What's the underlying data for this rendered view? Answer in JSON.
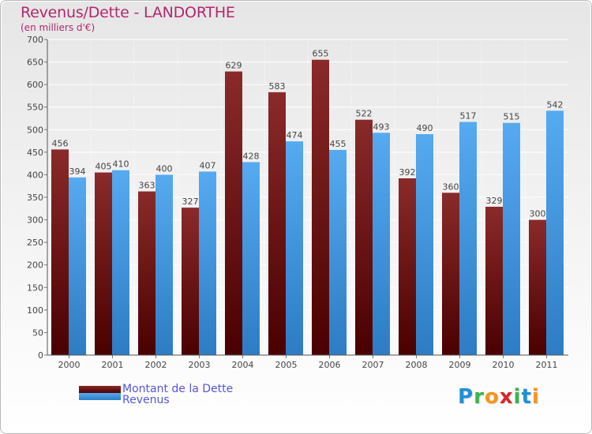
{
  "header": {
    "title": "Revenus/Dette - LANDORTHE",
    "subtitle": "(en milliers d'€)"
  },
  "colors": {
    "dette": "#6b0a0a",
    "revenus": "#3e98e0",
    "title": "#b2286a",
    "legend_text": "#5555dd"
  },
  "chart_data": {
    "type": "bar",
    "title": "Revenus/Dette - LANDORTHE",
    "subtitle": "(en milliers d'€)",
    "categories": [
      "2000",
      "2001",
      "2002",
      "2003",
      "2004",
      "2005",
      "2006",
      "2007",
      "2008",
      "2009",
      "2010",
      "2011"
    ],
    "series": [
      {
        "name": "Montant de la Dette",
        "values": [
          456,
          405,
          363,
          327,
          629,
          583,
          655,
          522,
          392,
          360,
          329,
          300
        ]
      },
      {
        "name": "Revenus",
        "values": [
          394,
          410,
          400,
          407,
          428,
          474,
          455,
          493,
          490,
          517,
          515,
          542
        ]
      }
    ],
    "ylim": [
      0,
      700
    ],
    "yticks": [
      0,
      50,
      100,
      150,
      200,
      250,
      300,
      350,
      400,
      450,
      500,
      550,
      600,
      650,
      700
    ],
    "grid": true,
    "legend_position": "bottom-left"
  },
  "legend": {
    "items": [
      {
        "label": "Montant de la Dette"
      },
      {
        "label": "Revenus"
      }
    ]
  },
  "logo": {
    "letters": [
      "P",
      "r",
      "o",
      "x",
      "i",
      "t",
      "i"
    ],
    "letter_colors": [
      "#1f8fd6",
      "#3ab54a",
      "#f7941d",
      "#d7252c",
      "#3ab54a",
      "#1f8fd6",
      "#f7941d"
    ]
  }
}
